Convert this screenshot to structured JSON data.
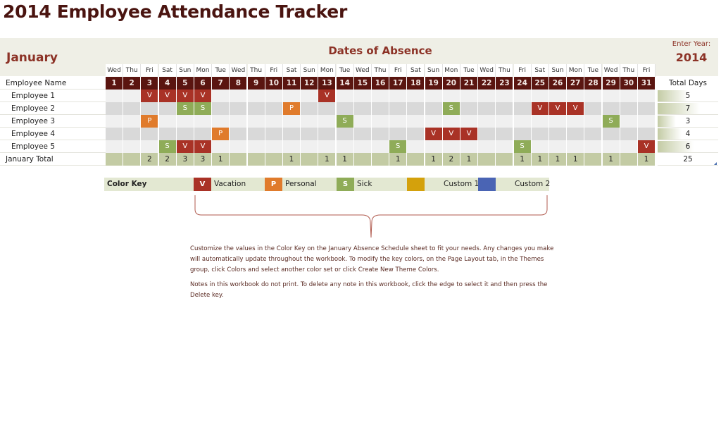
{
  "title": "2014 Employee Attendance Tracker",
  "header": {
    "month": "January",
    "section_title": "Dates of Absence",
    "enter_year_label": "Enter Year:",
    "year": "2014",
    "employee_name_header": "Employee Name",
    "total_days_header": "Total Days"
  },
  "days": [
    {
      "dow": "Wed",
      "num": "1"
    },
    {
      "dow": "Thu",
      "num": "2"
    },
    {
      "dow": "Fri",
      "num": "3"
    },
    {
      "dow": "Sat",
      "num": "4"
    },
    {
      "dow": "Sun",
      "num": "5"
    },
    {
      "dow": "Mon",
      "num": "6"
    },
    {
      "dow": "Tue",
      "num": "7"
    },
    {
      "dow": "Wed",
      "num": "8"
    },
    {
      "dow": "Thu",
      "num": "9"
    },
    {
      "dow": "Fri",
      "num": "10"
    },
    {
      "dow": "Sat",
      "num": "11"
    },
    {
      "dow": "Sun",
      "num": "12"
    },
    {
      "dow": "Mon",
      "num": "13"
    },
    {
      "dow": "Tue",
      "num": "14"
    },
    {
      "dow": "Wed",
      "num": "15"
    },
    {
      "dow": "Thu",
      "num": "16"
    },
    {
      "dow": "Fri",
      "num": "17"
    },
    {
      "dow": "Sat",
      "num": "18"
    },
    {
      "dow": "Sun",
      "num": "19"
    },
    {
      "dow": "Mon",
      "num": "20"
    },
    {
      "dow": "Tue",
      "num": "21"
    },
    {
      "dow": "Wed",
      "num": "22"
    },
    {
      "dow": "Thu",
      "num": "23"
    },
    {
      "dow": "Fri",
      "num": "24"
    },
    {
      "dow": "Sat",
      "num": "25"
    },
    {
      "dow": "Sun",
      "num": "26"
    },
    {
      "dow": "Mon",
      "num": "27"
    },
    {
      "dow": "Tue",
      "num": "28"
    },
    {
      "dow": "Wed",
      "num": "29"
    },
    {
      "dow": "Thu",
      "num": "30"
    },
    {
      "dow": "Fri",
      "num": "31"
    }
  ],
  "employees": [
    {
      "name": "Employee 1",
      "total": "5",
      "absences": {
        "3": "V",
        "4": "V",
        "5": "V",
        "6": "V",
        "13": "V"
      }
    },
    {
      "name": "Employee 2",
      "total": "7",
      "absences": {
        "5": "S",
        "6": "S",
        "11": "P",
        "20": "S",
        "25": "V",
        "26": "V",
        "27": "V"
      }
    },
    {
      "name": "Employee 3",
      "total": "3",
      "absences": {
        "3": "P",
        "14": "S",
        "29": "S"
      }
    },
    {
      "name": "Employee 4",
      "total": "4",
      "absences": {
        "7": "P",
        "19": "V",
        "20": "V",
        "21": "V"
      }
    },
    {
      "name": "Employee 5",
      "total": "6",
      "absences": {
        "4": "S",
        "5": "V",
        "6": "V",
        "17": "S",
        "24": "S",
        "31": "V"
      }
    }
  ],
  "month_total": {
    "label": "January Total",
    "values": [
      "",
      "",
      "2",
      "2",
      "3",
      "3",
      "1",
      "",
      "",
      "",
      "1",
      "",
      "1",
      "1",
      "",
      "",
      "1",
      "",
      "1",
      "2",
      "1",
      "",
      "",
      "1",
      "1",
      "1",
      "1",
      "",
      "1",
      "",
      "1"
    ],
    "total": "25"
  },
  "color_key": {
    "label": "Color Key",
    "items": [
      {
        "code": "V",
        "label": "Vacation",
        "color": "#a93226"
      },
      {
        "code": "P",
        "label": "Personal",
        "color": "#e07b2c"
      },
      {
        "code": "S",
        "label": "Sick",
        "color": "#8fac58"
      },
      {
        "code": "",
        "label": "Custom 1",
        "color": "#d4a10c"
      },
      {
        "code": "",
        "label": "Custom 2",
        "color": "#4a64b4"
      }
    ]
  },
  "note": {
    "paragraph1": "Customize the values in the Color Key on the January Absence Schedule sheet to fit your needs. Any changes you make will automatically update throughout the workbook.  To modify the key colors, on the Page Layout tab,  in the Themes group, click Colors and select another color set or  click Create New Theme Colors.",
    "paragraph2": "Notes in this workbook do not print. To delete any note in this workbook, click the edge to select it and then press the Delete key."
  },
  "colors": {
    "title": "#4a1410",
    "accent": "#8c3226",
    "date_header": "#5a1510",
    "vacation": "#a93226",
    "personal": "#e07b2c",
    "sick": "#8fac58",
    "total_row": "#c3cba4"
  }
}
